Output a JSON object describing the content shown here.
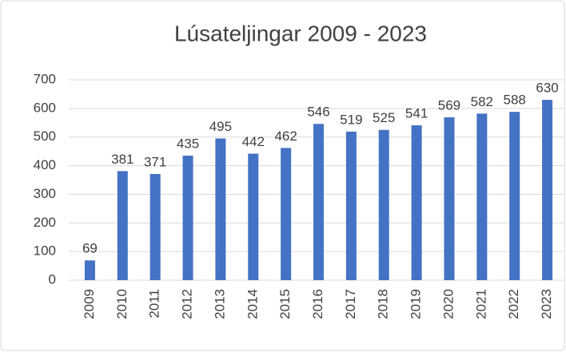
{
  "chart_data": {
    "type": "bar",
    "title": "Lúsateljingar 2009 - 2023",
    "categories": [
      "2009",
      "2010",
      "2011",
      "2012",
      "2013",
      "2014",
      "2015",
      "2016",
      "2017",
      "2018",
      "2019",
      "2020",
      "2021",
      "2022",
      "2023"
    ],
    "values": [
      69,
      381,
      371,
      435,
      495,
      442,
      462,
      546,
      519,
      525,
      541,
      569,
      582,
      588,
      630
    ],
    "color": "#4472c4",
    "ylim": [
      0,
      700
    ],
    "yticks": [
      0,
      100,
      200,
      300,
      400,
      500,
      600,
      700
    ],
    "grid": true
  }
}
